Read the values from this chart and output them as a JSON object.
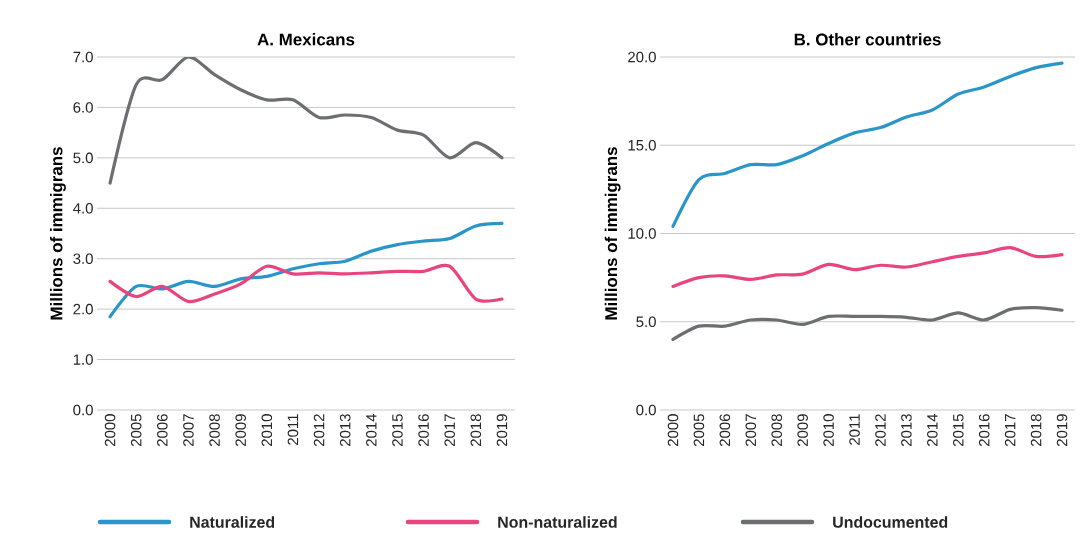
{
  "chart_data": [
    {
      "type": "line",
      "title": "A. Mexicans",
      "ylabel": "Millions of immigrans",
      "categories": [
        "2000",
        "2005",
        "2006",
        "2007",
        "2008",
        "2009",
        "2010",
        "2011",
        "2012",
        "2013",
        "2014",
        "2015",
        "2016",
        "2017",
        "2018",
        "2019"
      ],
      "series": [
        {
          "name": "Naturalized",
          "color": "#2a96c8",
          "values": [
            1.85,
            2.45,
            2.4,
            2.55,
            2.45,
            2.6,
            2.65,
            2.8,
            2.9,
            2.95,
            3.15,
            3.28,
            3.35,
            3.4,
            3.65,
            3.7
          ]
        },
        {
          "name": "Non-naturalized",
          "color": "#e8457e",
          "values": [
            2.55,
            2.25,
            2.45,
            2.15,
            2.3,
            2.5,
            2.85,
            2.7,
            2.72,
            2.7,
            2.72,
            2.75,
            2.75,
            2.85,
            2.2,
            2.2
          ]
        },
        {
          "name": "Undocumented",
          "color": "#6d6e71",
          "values": [
            4.5,
            6.45,
            6.55,
            7.0,
            6.65,
            6.35,
            6.15,
            6.15,
            5.8,
            5.85,
            5.8,
            5.55,
            5.45,
            5.0,
            5.3,
            5.0
          ]
        }
      ],
      "ylim": [
        0,
        7
      ],
      "yticks": [
        {
          "value": 0,
          "label": "0.0"
        },
        {
          "value": 1,
          "label": "1.0"
        },
        {
          "value": 2,
          "label": "2.0"
        },
        {
          "value": 3,
          "label": "3.0"
        },
        {
          "value": 4,
          "label": "4.0"
        },
        {
          "value": 5,
          "label": "5.0"
        },
        {
          "value": 6,
          "label": "6.0"
        },
        {
          "value": 7,
          "label": "7.0"
        }
      ],
      "grid": "y",
      "legend": "bottom",
      "marker": "none",
      "line_style": "solid"
    },
    {
      "type": "line",
      "title": "B. Other countries",
      "ylabel": "Millions of immigrans",
      "categories": [
        "2000",
        "2005",
        "2006",
        "2007",
        "2008",
        "2009",
        "2010",
        "2011",
        "2012",
        "2013",
        "2014",
        "2015",
        "2016",
        "2017",
        "2018",
        "2019"
      ],
      "series": [
        {
          "color": "#2a96c8",
          "values": [
            10.4,
            13.05,
            13.4,
            13.9,
            13.9,
            14.4,
            15.1,
            15.7,
            16.0,
            16.6,
            17.0,
            17.9,
            18.3,
            18.9,
            19.4,
            19.65
          ]
        },
        {
          "color": "#e8457e",
          "values": [
            7.0,
            7.5,
            7.6,
            7.4,
            7.65,
            7.7,
            8.25,
            7.95,
            8.2,
            8.1,
            8.4,
            8.7,
            8.9,
            9.2,
            8.7,
            8.8
          ]
        },
        {
          "color": "#6d6e71",
          "values": [
            4.0,
            4.75,
            4.75,
            5.1,
            5.1,
            4.85,
            5.3,
            5.3,
            5.3,
            5.25,
            5.1,
            5.5,
            5.1,
            5.7,
            5.8,
            5.65
          ]
        }
      ],
      "ylim": [
        0,
        20
      ],
      "yticks": [
        {
          "value": 0,
          "label": "0.0"
        },
        {
          "value": 5,
          "label": "5.0"
        },
        {
          "value": 10,
          "label": "10.0"
        },
        {
          "value": 15,
          "label": "15.0"
        },
        {
          "value": 20,
          "label": "20.0"
        }
      ],
      "grid": "y",
      "marker": "none",
      "line_style": "solid"
    }
  ]
}
